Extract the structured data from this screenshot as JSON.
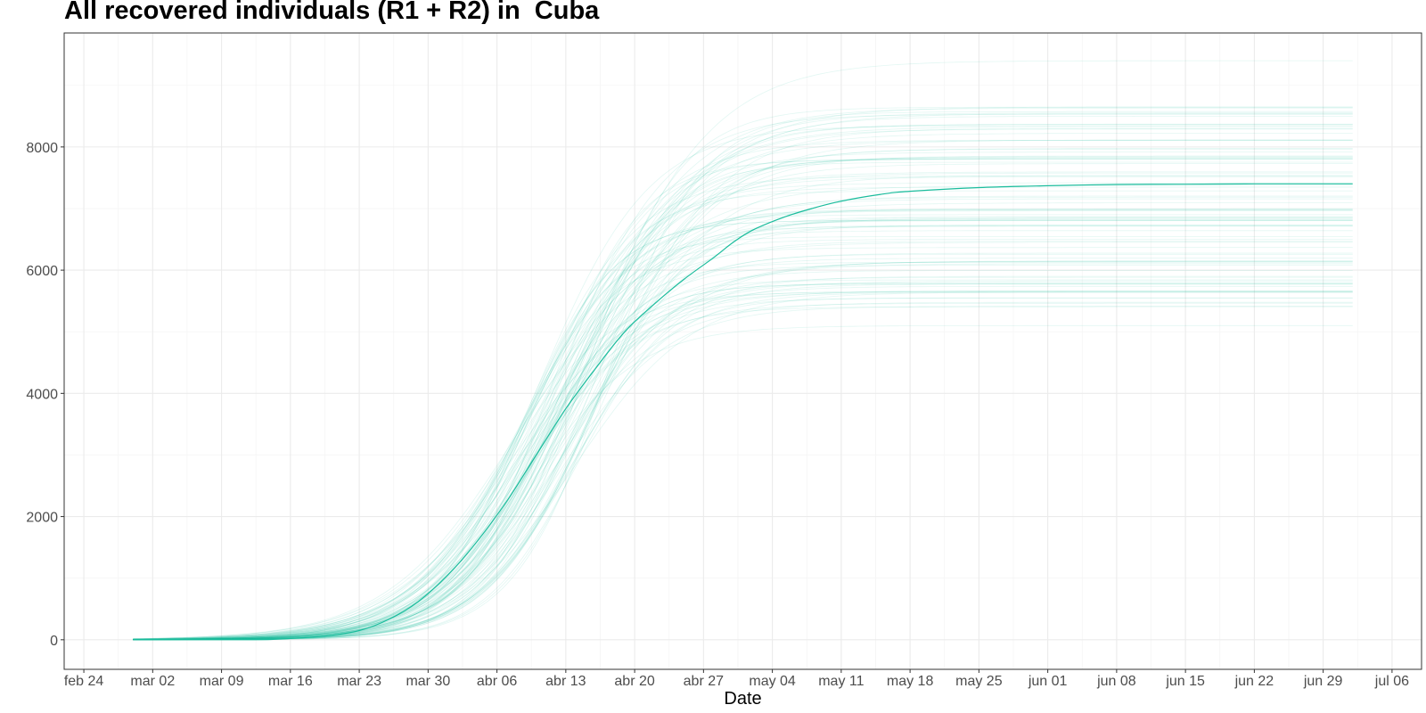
{
  "chart_data": {
    "type": "line",
    "title": "All recovered individuals (R1 + R2) in  Cuba",
    "xlabel": "Date",
    "ylabel": "",
    "xlim": [
      "2020-02-22",
      "2020-07-09"
    ],
    "ylim": [
      -480,
      9850
    ],
    "x_ticks": [
      {
        "date": "2020-02-24",
        "label": "feb 24"
      },
      {
        "date": "2020-03-02",
        "label": "mar 02"
      },
      {
        "date": "2020-03-09",
        "label": "mar 09"
      },
      {
        "date": "2020-03-16",
        "label": "mar 16"
      },
      {
        "date": "2020-03-23",
        "label": "mar 23"
      },
      {
        "date": "2020-03-30",
        "label": "mar 30"
      },
      {
        "date": "2020-04-06",
        "label": "abr 06"
      },
      {
        "date": "2020-04-13",
        "label": "abr 13"
      },
      {
        "date": "2020-04-20",
        "label": "abr 20"
      },
      {
        "date": "2020-04-27",
        "label": "abr 27"
      },
      {
        "date": "2020-05-04",
        "label": "may 04"
      },
      {
        "date": "2020-05-11",
        "label": "may 11"
      },
      {
        "date": "2020-05-18",
        "label": "may 18"
      },
      {
        "date": "2020-05-25",
        "label": "may 25"
      },
      {
        "date": "2020-06-01",
        "label": "jun 01"
      },
      {
        "date": "2020-06-08",
        "label": "jun 08"
      },
      {
        "date": "2020-06-15",
        "label": "jun 15"
      },
      {
        "date": "2020-06-22",
        "label": "jun 22"
      },
      {
        "date": "2020-06-29",
        "label": "jun 29"
      },
      {
        "date": "2020-07-06",
        "label": "jul 06"
      }
    ],
    "y_ticks": [
      0,
      2000,
      4000,
      6000,
      8000
    ],
    "grid": true,
    "legend": "none",
    "colors": {
      "line": "#1abc9c",
      "grid_major": "#ebebeb",
      "grid_minor": "#f5f5f5",
      "panel_border": "#333333"
    },
    "main_series": {
      "dates": [
        "2020-02-29",
        "2020-03-05",
        "2020-03-10",
        "2020-03-14",
        "2020-03-17",
        "2020-03-20",
        "2020-03-23",
        "2020-03-26",
        "2020-03-29",
        "2020-04-01",
        "2020-04-04",
        "2020-04-07",
        "2020-04-10",
        "2020-04-13",
        "2020-04-16",
        "2020-04-19",
        "2020-04-22",
        "2020-04-25",
        "2020-04-28",
        "2020-04-30",
        "2020-05-02",
        "2020-05-05",
        "2020-05-08",
        "2020-05-11",
        "2020-05-15",
        "2020-05-18",
        "2020-05-25",
        "2020-06-01",
        "2020-06-08",
        "2020-06-15",
        "2020-06-22",
        "2020-06-29",
        "2020-07-02"
      ],
      "values": [
        0,
        0,
        0,
        5,
        30,
        70,
        150,
        330,
        620,
        1050,
        1600,
        2250,
        3000,
        3750,
        4400,
        5000,
        5450,
        5850,
        6200,
        6450,
        6650,
        6850,
        7000,
        7120,
        7230,
        7280,
        7340,
        7370,
        7390,
        7395,
        7400,
        7400,
        7400
      ]
    },
    "ensemble": {
      "count": 100,
      "plateau_min": 5100,
      "plateau_max": 9400,
      "plateau_median": 7000
    }
  }
}
